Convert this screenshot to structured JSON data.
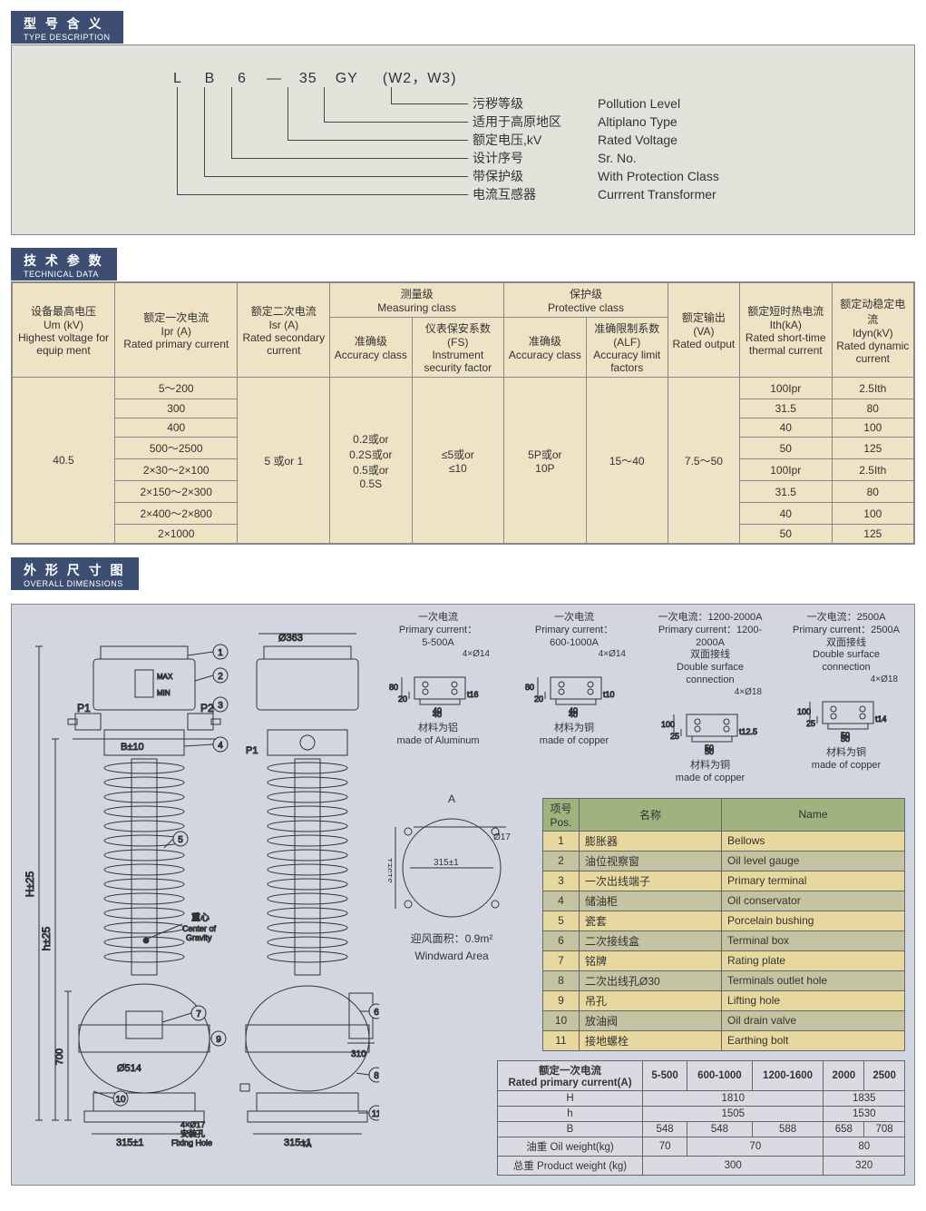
{
  "sections": {
    "type_cn": "型 号 含 义",
    "type_en": "TYPE DESCRIPTION",
    "tech_cn": "技 术 参 数",
    "tech_en": "TECHNICAL DATA",
    "dim_cn": "外 形 尺 寸 图",
    "dim_en": "OVERALL DIMENSIONS"
  },
  "type_code": {
    "parts": [
      "L",
      "B",
      "6",
      "—",
      "35",
      "GY",
      "(W2，W3)"
    ],
    "lines": [
      {
        "cn": "污秽等级",
        "en": "Pollution Level"
      },
      {
        "cn": "适用于高原地区",
        "en": "Altiplano Type"
      },
      {
        "cn": "额定电压,kV",
        "en": "Rated Voltage"
      },
      {
        "cn": "设计序号",
        "en": "Sr. No."
      },
      {
        "cn": "带保护级",
        "en": "With Protection Class"
      },
      {
        "cn": "电流互感器",
        "en": "Currrent Transformer"
      }
    ]
  },
  "tech": {
    "headers": {
      "um": "设备最高电压\nUm (kV)\nHighest voltage for equip ment",
      "ipr": "额定一次电流\nIpr (A)\nRated primary current",
      "isr": "额定二次电流\nIsr (A)\nRated secondary current",
      "meas_group": "测量级\nMeasuring class",
      "prot_group": "保护级\nProtective class",
      "meas_acc": "准确级\nAccuracy class",
      "meas_fs": "仪表保安系数(FS)\nInstrument security factor",
      "prot_acc": "准确级\nAccuracy class",
      "prot_alf": "准确限制系数(ALF)\nAccuracy limit factors",
      "va": "额定输出\n(VA)\nRated output",
      "ith": "额定短时热电流\nIth(kA)\nRated short-time thermal current",
      "idyn": "额定动稳定电流\nIdyn(kV)\nRated dynamic current"
    },
    "um_val": "40.5",
    "isr_val": "5 或or 1",
    "meas_acc_val": "0.2或or\n0.2S或or\n0.5或or\n0.5S",
    "meas_fs_val": "≤5或or\n≤10",
    "prot_acc_val": "5P或or\n10P",
    "prot_alf_val": "15～40",
    "va_val": "7.5～50",
    "rows": [
      {
        "ipr": "5～200",
        "ith": "100Ipr",
        "idyn": "2.5Ith"
      },
      {
        "ipr": "300",
        "ith": "31.5",
        "idyn": "80"
      },
      {
        "ipr": "400",
        "ith": "40",
        "idyn": "100"
      },
      {
        "ipr": "500～2500",
        "ith": "50",
        "idyn": "125"
      },
      {
        "ipr": "2×30～2×100",
        "ith": "100Ipr",
        "idyn": "2.5Ith"
      },
      {
        "ipr": "2×150～2×300",
        "ith": "31.5",
        "idyn": "80"
      },
      {
        "ipr": "2×400～2×800",
        "ith": "40",
        "idyn": "100"
      },
      {
        "ipr": "2×1000",
        "ith": "50",
        "idyn": "125"
      }
    ]
  },
  "dim": {
    "terminals": [
      {
        "l1": "一次电流",
        "l2": "Primary current：",
        "l3": "5-500A",
        "l4": "",
        "holes": "4×Ø14",
        "d1": "80",
        "d2": "20",
        "d3": "40",
        "d4": "t16",
        "d5": "40",
        "mat_cn": "材料为铝",
        "mat_en": "made of Aluminum"
      },
      {
        "l1": "一次电流",
        "l2": "Primary current：",
        "l3": "600-1000A",
        "l4": "",
        "holes": "4×Ø14",
        "d1": "80",
        "d2": "20",
        "d3": "40",
        "d4": "t10",
        "d5": "40",
        "mat_cn": "材料为铜",
        "mat_en": "made of copper"
      },
      {
        "l1": "一次电流：1200-2000A",
        "l2": "Primary current：1200-2000A",
        "l3": "双面接线",
        "l4": "Double surface connection",
        "holes": "4×Ø18",
        "d1": "100",
        "d2": "25",
        "d3": "50",
        "d4": "t12.5",
        "d5": "50",
        "mat_cn": "材料为铜",
        "mat_en": "made of copper"
      },
      {
        "l1": "一次电流：2500A",
        "l2": "Primary current：2500A",
        "l3": "双面接线",
        "l4": "Double surface connection",
        "holes": "4×Ø18",
        "d1": "100",
        "d2": "25",
        "d3": "50",
        "d4": "t14",
        "d5": "50",
        "mat_cn": "材料为铜",
        "mat_en": "made of copper"
      }
    ],
    "windward_cn": "迎风面积：0.9m²",
    "windward_en": "Windward Area",
    "A_label": "A",
    "A_dia": "Ø17",
    "A_w": "315±1",
    "A_h": "315±1",
    "partlist": {
      "head_pos": "项号\nPos.",
      "head_cn": "名称",
      "head_en": "Name",
      "rows": [
        {
          "p": "1",
          "cn": "膨胀器",
          "en": "Bellows"
        },
        {
          "p": "2",
          "cn": "油位视察窗",
          "en": "Oil level gauge"
        },
        {
          "p": "3",
          "cn": "一次出线端子",
          "en": "Primary terminal"
        },
        {
          "p": "4",
          "cn": "储油柜",
          "en": "Oil conservator"
        },
        {
          "p": "5",
          "cn": "瓷套",
          "en": "Porcelain bushing"
        },
        {
          "p": "6",
          "cn": "二次接线盒",
          "en": "Terminal box"
        },
        {
          "p": "7",
          "cn": "铭牌",
          "en": "Rating plate"
        },
        {
          "p": "8",
          "cn": "二次出线孔Ø30",
          "en": "Terminals outlet hole"
        },
        {
          "p": "9",
          "cn": "吊孔",
          "en": "Lifting hole"
        },
        {
          "p": "10",
          "cn": "放油阀",
          "en": "Oil drain valve"
        },
        {
          "p": "11",
          "cn": "接地螺栓",
          "en": "Earthing bolt"
        }
      ]
    },
    "dimtable": {
      "head": "额定一次电流\nRated primary current(A)",
      "cols": [
        "5-500",
        "600-1000",
        "1200-1600",
        "2000",
        "2500"
      ],
      "rows": [
        {
          "k": "H",
          "v": [
            "1810",
            "1810",
            "1810",
            "1835",
            "1835"
          ],
          "spans": [
            3,
            2
          ]
        },
        {
          "k": "h",
          "v": [
            "1505",
            "1505",
            "1505",
            "1530",
            "1530"
          ],
          "spans": [
            3,
            2
          ]
        },
        {
          "k": "B",
          "v": [
            "548",
            "548",
            "588",
            "658",
            "708"
          ],
          "spans": [
            1,
            1,
            1,
            1,
            1
          ]
        },
        {
          "k": "油重 Oil weight(kg)",
          "v": [
            "70",
            "70",
            "70",
            "80",
            "80"
          ],
          "spans": [
            1,
            2,
            2
          ]
        },
        {
          "k": "总重 Product weight (kg)",
          "v": [
            "300",
            "300",
            "300",
            "320",
            "320"
          ],
          "spans": [
            3,
            2
          ]
        }
      ]
    },
    "drawing": {
      "top_dia": "Ø363",
      "p1": "P1",
      "p2": "P2",
      "B": "B±10",
      "H": "H±25",
      "h": "h±25",
      "dim700": "700",
      "bot_dia": "Ø514",
      "base_w": "315±1",
      "fix_hole": "4×Ø17\n安装孔\nFixing Hole",
      "cg_cn": "重心",
      "cg_en": "Center of\nGravity",
      "maxmin": "MAX\nMIN",
      "side_p1": "P1",
      "side_base": "315±1",
      "side_box": "310",
      "A_arrow": "A",
      "callouts": [
        "1",
        "2",
        "3",
        "4",
        "5",
        "6",
        "7",
        "8",
        "9",
        "10",
        "11"
      ]
    }
  }
}
